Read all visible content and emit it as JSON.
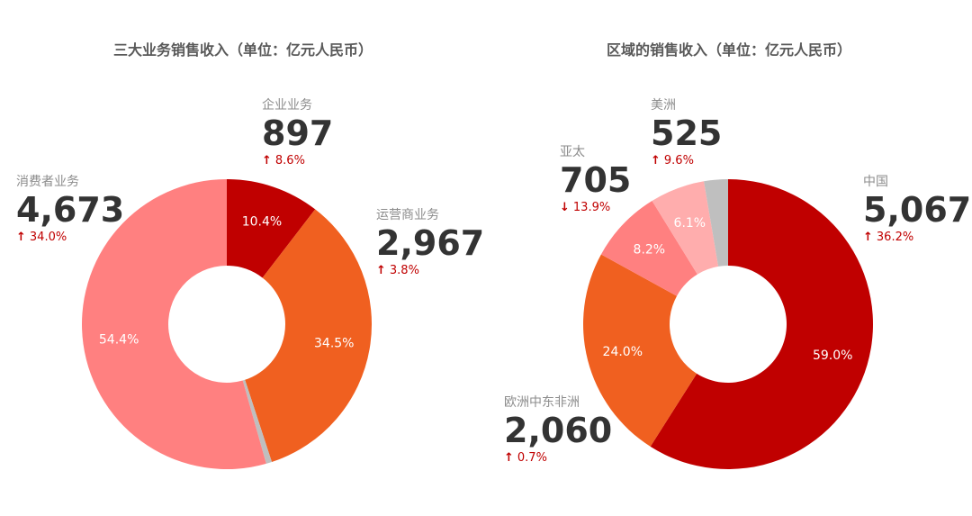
{
  "chart_data": [
    {
      "type": "pie",
      "title": "三大业务销售收入（单位：亿元人民币）",
      "slices": [
        {
          "name": "企业业务",
          "value": 897,
          "percent_label": "10.4%",
          "change": "8.6%",
          "direction": "up",
          "color": "#c00000"
        },
        {
          "name": "运营商业务",
          "value": 2967,
          "value_label": "2,967",
          "percent_label": "34.5%",
          "change": "3.8%",
          "direction": "up",
          "color": "#f06020"
        },
        {
          "name": "",
          "value": 55,
          "percent_label": "",
          "color": "#bfbfbf"
        },
        {
          "name": "消费者业务",
          "value": 4673,
          "value_label": "4,673",
          "percent_label": "54.4%",
          "change": "34.0%",
          "direction": "up",
          "color": "#ff8080"
        }
      ]
    },
    {
      "type": "pie",
      "title": "区域的销售收入（单位：亿元人民币）",
      "slices": [
        {
          "name": "中国",
          "value": 5067,
          "value_label": "5,067",
          "percent_label": "59.0%",
          "change": "36.2%",
          "direction": "up",
          "color": "#c00000"
        },
        {
          "name": "欧洲中东非洲",
          "value": 2060,
          "value_label": "2,060",
          "percent_label": "24.0%",
          "change": "0.7%",
          "direction": "up",
          "color": "#f06020"
        },
        {
          "name": "亚太",
          "value": 705,
          "percent_label": "8.2%",
          "change": "13.9%",
          "direction": "down",
          "color": "#ff8080"
        },
        {
          "name": "美洲",
          "value": 525,
          "percent_label": "6.1%",
          "change": "9.6%",
          "direction": "up",
          "color": "#ffadad"
        },
        {
          "name": "",
          "value": 230,
          "percent_label": "",
          "color": "#bfbfbf"
        }
      ]
    }
  ],
  "arrows": {
    "up": "🡑",
    "down": "🡓"
  },
  "callouts": {
    "left": {
      "enterprise": {
        "name": "企业业务",
        "value": "897",
        "change": "8.6%",
        "arrow": "↑"
      },
      "carrier": {
        "name": "运营商业务",
        "value": "2,967",
        "change": "3.8%",
        "arrow": "↑"
      },
      "consumer": {
        "name": "消费者业务",
        "value": "4,673",
        "change": "34.0%",
        "arrow": "↑"
      }
    },
    "right": {
      "china": {
        "name": "中国",
        "value": "5,067",
        "change": "36.2%",
        "arrow": "↑"
      },
      "emea": {
        "name": "欧洲中东非洲",
        "value": "2,060",
        "change": "0.7%",
        "arrow": "↑"
      },
      "apac": {
        "name": "亚太",
        "value": "705",
        "change": "13.9%",
        "arrow": "↓"
      },
      "americas": {
        "name": "美洲",
        "value": "525",
        "change": "9.6%",
        "arrow": "↑"
      }
    }
  }
}
